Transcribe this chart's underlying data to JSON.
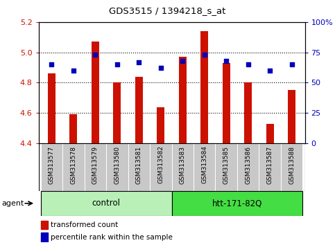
{
  "title": "GDS3515 / 1394218_s_at",
  "samples": [
    "GSM313577",
    "GSM313578",
    "GSM313579",
    "GSM313580",
    "GSM313581",
    "GSM313582",
    "GSM313583",
    "GSM313584",
    "GSM313585",
    "GSM313586",
    "GSM313587",
    "GSM313588"
  ],
  "bar_values": [
    4.86,
    4.59,
    5.07,
    4.8,
    4.84,
    4.64,
    4.97,
    5.14,
    4.93,
    4.8,
    4.53,
    4.75
  ],
  "pct_ranks": [
    65,
    60,
    73,
    65,
    67,
    62,
    68,
    73,
    68,
    65,
    60,
    65
  ],
  "ylim_left": [
    4.4,
    5.2
  ],
  "ylim_right": [
    0,
    100
  ],
  "yticks_left": [
    4.4,
    4.6,
    4.8,
    5.0,
    5.2
  ],
  "yticks_right": [
    0,
    25,
    50,
    75,
    100
  ],
  "ytick_labels_right": [
    "0",
    "25",
    "50",
    "75",
    "100%"
  ],
  "bar_color": "#CC1100",
  "percentile_color": "#0000BB",
  "bar_bottom": 4.4,
  "bar_width": 0.35,
  "control_count": 6,
  "control_label": "control",
  "htt_label": "htt-171-82Q",
  "agent_label": "agent",
  "legend_bar_label": "transformed count",
  "legend_pct_label": "percentile rank within the sample",
  "left_color": "#CC1100",
  "right_color": "#0000BB",
  "xticklabel_bg": "#c8c8c8",
  "control_bg": "#b8f0b8",
  "htt_bg": "#44dd44",
  "grid_color": "#000000"
}
